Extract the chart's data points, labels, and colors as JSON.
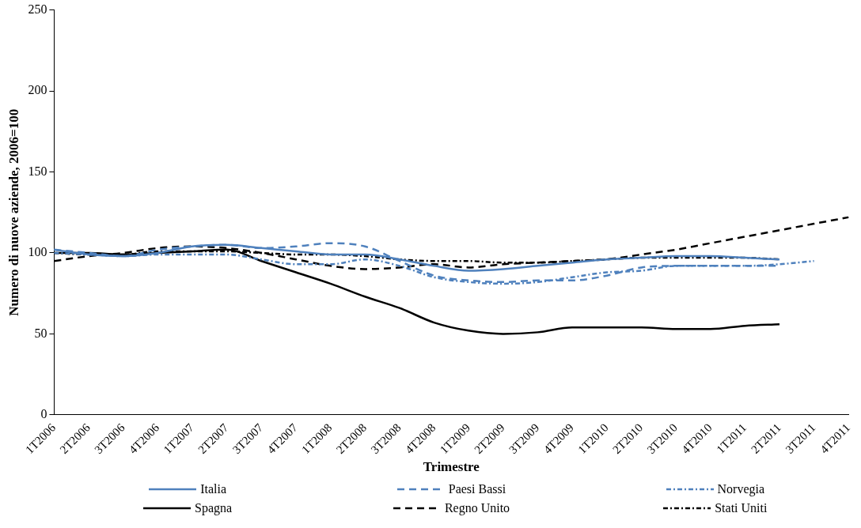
{
  "chart_data": {
    "type": "line",
    "xlabel": "Trimestre",
    "ylabel": "Numero di nuove aziende, 2006=100",
    "categories": [
      "1T2006",
      "2T2006",
      "3T2006",
      "4T2006",
      "1T2007",
      "2T2007",
      "3T2007",
      "4T2007",
      "1T2008",
      "2T2008",
      "3T2008",
      "4T2008",
      "1T2009",
      "2T2009",
      "3T2009",
      "4T2009",
      "1T2010",
      "2T2010",
      "3T2010",
      "4T2010",
      "1T2011",
      "2T2011",
      "3T2011",
      "4T2011"
    ],
    "ylim": [
      0,
      250
    ],
    "yticks": [
      0,
      50,
      100,
      150,
      200,
      250
    ],
    "grid": false,
    "legend": "bottom",
    "marker": "none",
    "series": [
      {
        "name": "Italia",
        "color": "#4f81bd",
        "line_style": "solid",
        "values": [
          102,
          99,
          98,
          100,
          104,
          105,
          103,
          101,
          99,
          99,
          96,
          92,
          89,
          90,
          92,
          94,
          96,
          97,
          98,
          98,
          97,
          96,
          null,
          null
        ]
      },
      {
        "name": "Paesi Bassi",
        "color": "#4f81bd",
        "line_style": "dashed",
        "values": [
          102,
          100,
          98,
          102,
          104,
          105,
          103,
          104,
          106,
          104,
          95,
          86,
          83,
          82,
          83,
          83,
          86,
          91,
          92,
          92,
          92,
          92,
          null,
          null
        ]
      },
      {
        "name": "Norvegia",
        "color": "#4f81bd",
        "line_style": "dashdot",
        "values": [
          100,
          99,
          98,
          99,
          99,
          99,
          96,
          93,
          93,
          96,
          92,
          85,
          82,
          81,
          82,
          85,
          88,
          89,
          92,
          92,
          92,
          93,
          95,
          null
        ]
      },
      {
        "name": "Spagna",
        "color": "#000000",
        "line_style": "solid",
        "values": [
          100,
          100,
          99,
          100,
          101,
          102,
          95,
          88,
          81,
          73,
          66,
          57,
          52,
          50,
          51,
          54,
          54,
          54,
          53,
          53,
          55,
          56,
          null,
          null
        ]
      },
      {
        "name": "Regno Unito",
        "color": "#000000",
        "line_style": "dashed",
        "values": [
          95,
          98,
          100,
          103,
          104,
          103,
          100,
          96,
          92,
          90,
          91,
          93,
          91,
          93,
          94,
          95,
          96,
          99,
          102,
          106,
          110,
          114,
          118,
          122
        ]
      },
      {
        "name": "Stati Uniti",
        "color": "#000000",
        "line_style": "dashdot",
        "values": [
          100,
          99,
          99,
          101,
          101,
          101,
          100,
          99,
          99,
          98,
          96,
          95,
          95,
          94,
          94,
          95,
          96,
          97,
          97,
          97,
          97,
          96,
          null,
          null
        ]
      }
    ]
  }
}
